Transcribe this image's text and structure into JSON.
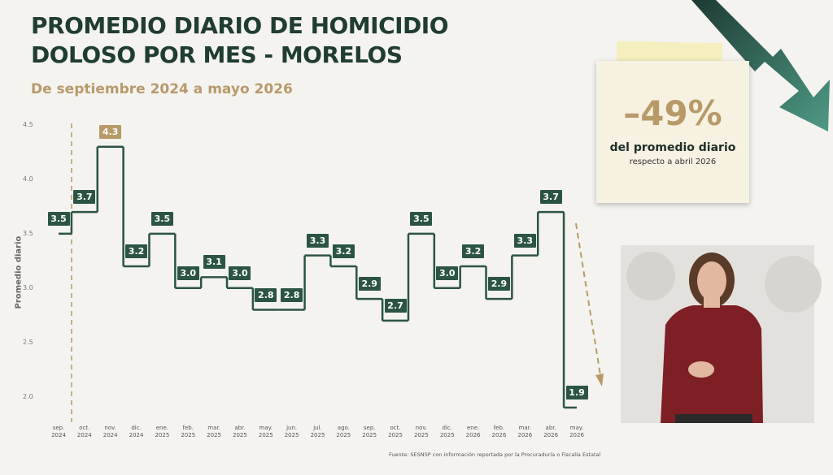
{
  "chart_data": {
    "type": "step",
    "title": "PROMEDIO DIARIO DE HOMICIDIO DOLOSO POR MES - MORELOS",
    "subtitle": "De septiembre 2024 a mayo 2026",
    "y_label": "Promedio diario",
    "categories": [
      "sep. 2024",
      "oct. 2024",
      "nov. 2024",
      "dic. 2024",
      "ene. 2025",
      "feb. 2025",
      "mar. 2025",
      "abr. 2025",
      "may. 2025",
      "jun. 2025",
      "jul. 2025",
      "ago. 2025",
      "sep. 2025",
      "oct. 2025",
      "nov. 2025",
      "dic. 2025",
      "ene. 2026",
      "feb. 2026",
      "mar. 2026",
      "abr. 2026",
      "may. 2026"
    ],
    "values": [
      3.5,
      3.7,
      4.3,
      3.2,
      3.5,
      3.0,
      3.1,
      3.0,
      2.8,
      2.8,
      3.3,
      3.2,
      2.9,
      2.7,
      3.5,
      3.0,
      3.2,
      2.9,
      3.3,
      3.7,
      1.9
    ],
    "value_labels": [
      "3.5",
      "3.7",
      "4.3",
      "3.2",
      "3.5",
      "3.0",
      "3.1",
      "3.0",
      "2.8",
      "2.8",
      "3.3",
      "3.2",
      "2.9",
      "2.7",
      "3.5",
      "3.0",
      "3.2",
      "2.9",
      "3.3",
      "3.7",
      "1.9"
    ],
    "color": "#2b5443",
    "label_colors": [
      "#2b5443",
      "#2b5443",
      "#b89a68",
      "#2b5443",
      "#2b5443",
      "#2b5443",
      "#2b5443",
      "#2b5443",
      "#2b5443",
      "#2b5443",
      "#2b5443",
      "#2b5443",
      "#2b5443",
      "#2b5443",
      "#2b5443",
      "#2b5443",
      "#2b5443",
      "#2b5443",
      "#2b5443",
      "#2b5443",
      "#2b5443"
    ],
    "ylim": [
      1.84,
      4.5
    ],
    "yticks": [
      {
        "value": 2,
        "label": "2.0"
      },
      2.5,
      {
        "value": 3,
        "label": "3.0"
      },
      3.5,
      {
        "value": 4,
        "label": "4.0"
      },
      4.5
    ],
    "grid": false,
    "callout": {
      "value": "–49%",
      "line1": "del promedio diario",
      "line2": "respecto a abril 2026"
    },
    "source": "Fuente: SESNSP con información reportada por la Procuraduría o Fiscalía Estatal"
  }
}
